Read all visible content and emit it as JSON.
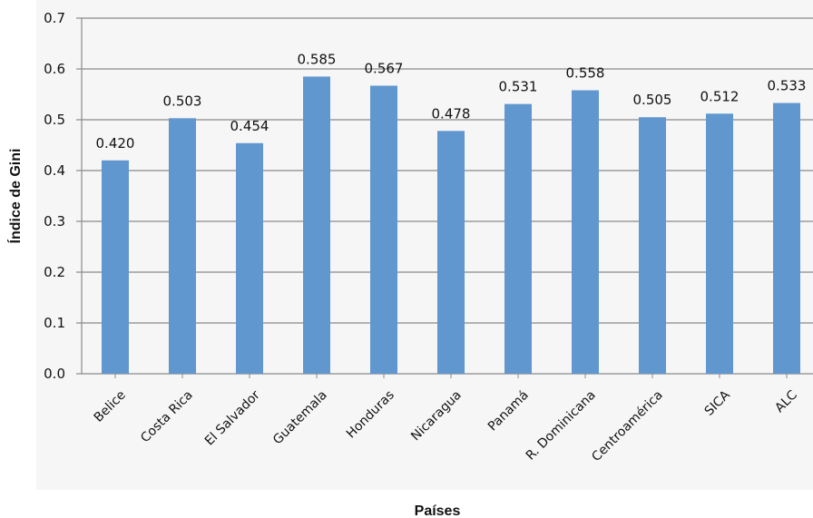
{
  "chart_data": {
    "type": "bar",
    "categories": [
      "Belice",
      "Costa Rica",
      "El Salvador",
      "Guatemala",
      "Honduras",
      "Nicaragua",
      "Panamá",
      "R. Dominicana",
      "Centroamérica",
      "SICA",
      "ALC"
    ],
    "values": [
      0.42,
      0.503,
      0.454,
      0.585,
      0.567,
      0.478,
      0.531,
      0.558,
      0.505,
      0.512,
      0.533
    ],
    "data_labels": [
      "0.420",
      "0.503",
      "0.454",
      "0.585",
      "0.567",
      "0.478",
      "0.531",
      "0.558",
      "0.505",
      "0.512",
      "0.533"
    ],
    "ylim": [
      0,
      0.7
    ],
    "yticks": [
      "0.0",
      "0.1",
      "0.2",
      "0.3",
      "0.4",
      "0.5",
      "0.6",
      "0.7"
    ],
    "xlabel": "Países",
    "ylabel": "Índice de Gini",
    "grid": true,
    "legend": "none",
    "bar_color": "#6097cf"
  }
}
